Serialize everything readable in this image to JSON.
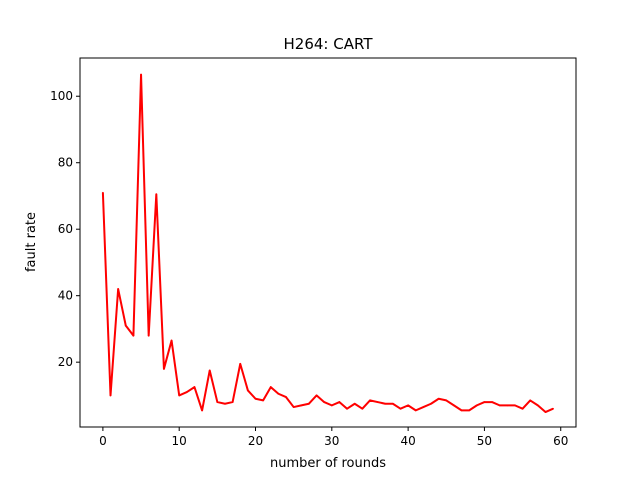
{
  "chart_data": {
    "type": "line",
    "title": "H264: CART",
    "xlabel": "number of rounds",
    "ylabel": "fault rate",
    "xlim": [
      -3,
      62
    ],
    "ylim": [
      0.5,
      111.5
    ],
    "xticks": [
      0,
      10,
      20,
      30,
      40,
      50,
      60
    ],
    "yticks": [
      20,
      40,
      60,
      80,
      100
    ],
    "grid": false,
    "color": "#ff0000",
    "series": [
      {
        "x": [
          0,
          1,
          2,
          3,
          4,
          5,
          6,
          7,
          8,
          9,
          10,
          11,
          12,
          13,
          14,
          15,
          16,
          17,
          18,
          19,
          20,
          21,
          22,
          23,
          24,
          25,
          26,
          27,
          28,
          29,
          30,
          31,
          32,
          33,
          34,
          35,
          36,
          37,
          38,
          39,
          40,
          41,
          42,
          43,
          44,
          45,
          46,
          47,
          48,
          49,
          50,
          51,
          52,
          53,
          54,
          55,
          56,
          57,
          58,
          59
        ],
        "values": [
          71,
          10,
          42,
          31,
          28,
          106.5,
          28,
          70.5,
          18,
          26.5,
          10,
          11,
          12.5,
          5.5,
          17.5,
          8,
          7.5,
          8,
          19.5,
          11.5,
          9,
          8.5,
          12.5,
          10.5,
          9.5,
          6.5,
          7,
          7.5,
          10,
          8,
          7,
          8,
          6,
          7.5,
          6,
          8.5,
          8,
          7.5,
          7.5,
          6,
          7,
          5.5,
          6.5,
          7.5,
          9,
          8.5,
          7,
          5.5,
          5.5,
          7,
          8,
          8,
          7,
          7,
          7,
          6,
          8.5,
          7,
          5,
          6
        ]
      }
    ]
  }
}
